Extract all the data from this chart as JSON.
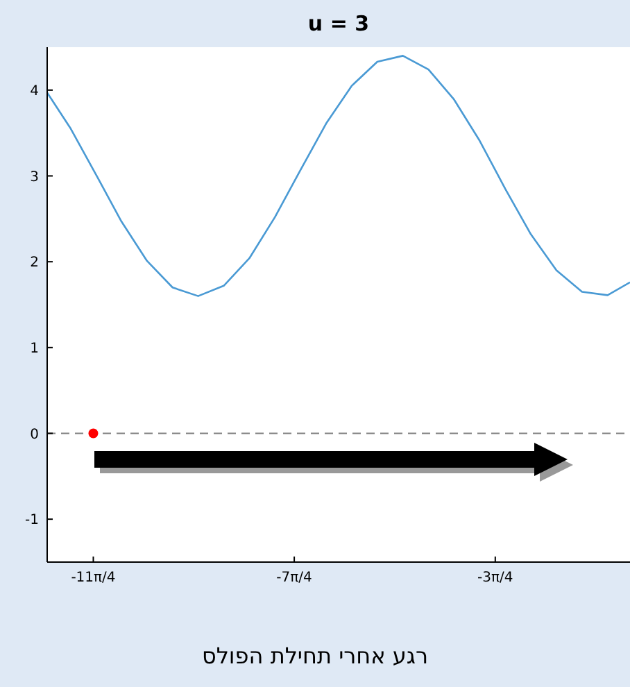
{
  "chart_data": {
    "type": "line",
    "title": "u = 3",
    "x": [
      -9.36,
      -9.0,
      -8.6,
      -8.2,
      -7.8,
      -7.4,
      -7.0,
      -6.6,
      -6.2,
      -5.8,
      -5.4,
      -5.0,
      -4.6,
      -4.2,
      -3.8,
      -3.4,
      -3.0,
      -2.6,
      -2.2,
      -1.8,
      -1.4,
      -1.0,
      -0.6,
      -0.25
    ],
    "series": [
      {
        "color": "#4a9ad4",
        "values": [
          3.97,
          3.56,
          3.02,
          2.47,
          2.01,
          1.7,
          1.6,
          1.72,
          2.04,
          2.52,
          3.07,
          3.61,
          4.05,
          4.33,
          4.4,
          4.24,
          3.89,
          3.41,
          2.85,
          2.32,
          1.9,
          1.65,
          1.61,
          1.76
        ]
      },
      {
        "type": "scatter",
        "color": "#ff0000",
        "x": [
          -8.639
        ],
        "values": [
          0
        ]
      }
    ],
    "xlim": [
      -9.36,
      -0.25
    ],
    "ylim": [
      -1.5,
      4.5
    ],
    "xticks": [
      {
        "value": -8.639,
        "label": "-11π/4"
      },
      {
        "value": -5.498,
        "label": "-7π/4"
      },
      {
        "value": -2.356,
        "label": "-3π/4"
      }
    ],
    "yticks": [
      -1,
      0,
      1,
      2,
      3,
      4
    ],
    "ref_lines": [
      {
        "axis": "y",
        "value": 0,
        "color": "#808080",
        "line_style": "dashed"
      }
    ],
    "grid": false,
    "annotations": [
      "רגע אחרי תחילת הפולס"
    ]
  }
}
